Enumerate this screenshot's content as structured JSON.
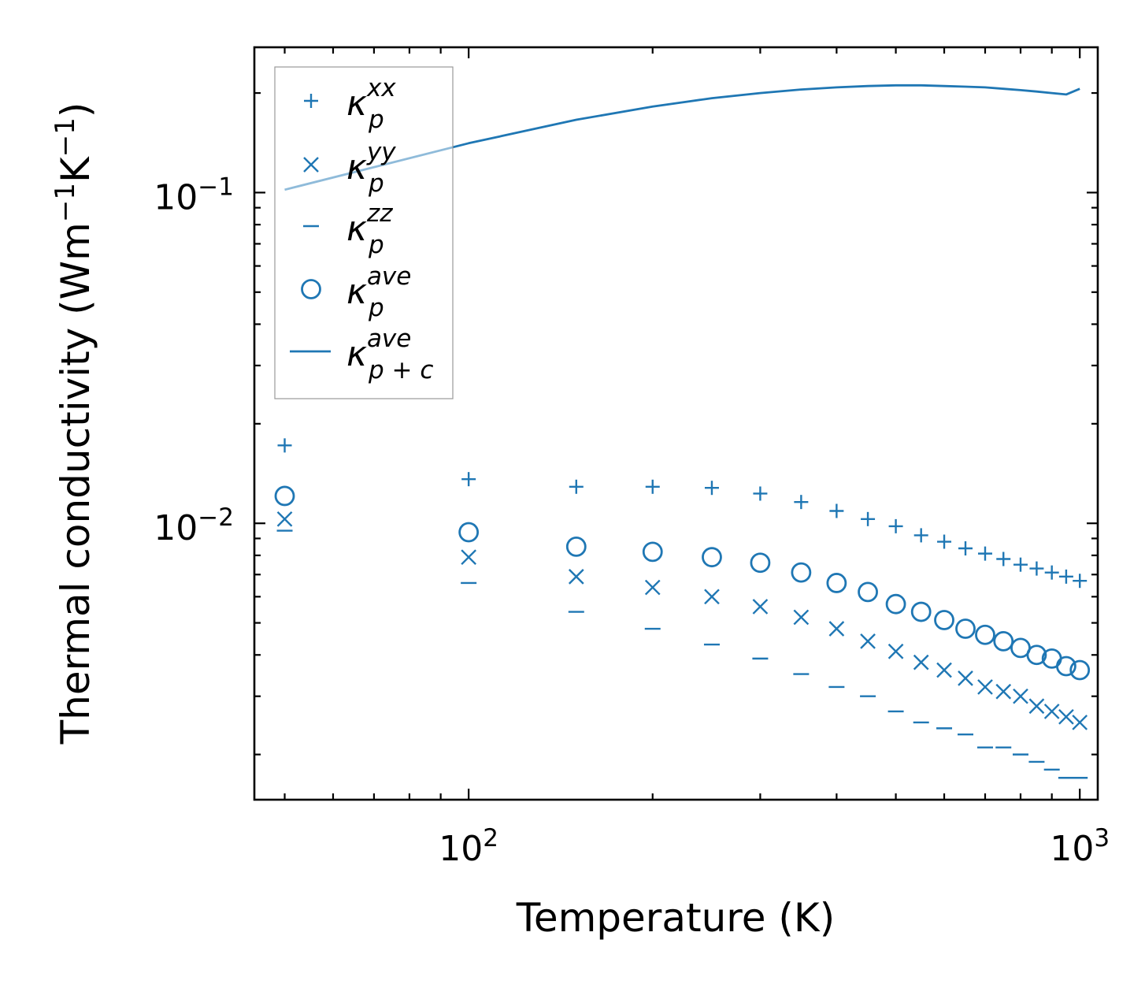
{
  "chart_data": {
    "type": "scatter",
    "title": "",
    "xlabel": "Temperature (K)",
    "ylabel": "Thermal conductivity (Wm",
    "ylabel_sup1": "−1",
    "ylabel_mid": "K",
    "ylabel_sup2": "−1",
    "ylabel_end": ")",
    "xscale": "log",
    "yscale": "log",
    "xlim": [
      44.6,
      1070
    ],
    "ylim": [
      0.00146,
      0.275
    ],
    "x_ticks": [
      {
        "base": "10",
        "exp": "2"
      },
      {
        "base": "10",
        "exp": "3"
      }
    ],
    "y_ticks": [
      {
        "base": "10",
        "exp": "−1"
      },
      {
        "base": "10",
        "exp": "−2"
      }
    ],
    "legend_position": "upper-left",
    "color": "#1f77b4",
    "x": [
      50,
      100,
      150,
      200,
      250,
      300,
      350,
      400,
      450,
      500,
      550,
      600,
      650,
      700,
      750,
      800,
      850,
      900,
      950,
      1000
    ],
    "series": [
      {
        "name": "κp xx",
        "label_main": "κ",
        "label_sub": "p",
        "label_sup": "xx",
        "marker": "plus",
        "values": [
          0.0172,
          0.0136,
          0.0129,
          0.0129,
          0.0128,
          0.0123,
          0.0116,
          0.0109,
          0.0103,
          0.0098,
          0.0092,
          0.0088,
          0.0084,
          0.0081,
          0.0078,
          0.0075,
          0.0073,
          0.0071,
          0.0069,
          0.0067
        ]
      },
      {
        "name": "κp yy",
        "label_main": "κ",
        "label_sub": "p",
        "label_sup": "yy",
        "marker": "x",
        "values": [
          0.0103,
          0.0079,
          0.0069,
          0.0064,
          0.006,
          0.0056,
          0.0052,
          0.0048,
          0.0044,
          0.0041,
          0.0038,
          0.0036,
          0.0034,
          0.0032,
          0.0031,
          0.003,
          0.0028,
          0.0027,
          0.0026,
          0.0025
        ]
      },
      {
        "name": "κp zz",
        "label_main": "κ",
        "label_sub": "p",
        "label_sup": "zz",
        "marker": "hline",
        "values": [
          0.0095,
          0.0066,
          0.0054,
          0.0048,
          0.0043,
          0.0039,
          0.0035,
          0.0032,
          0.003,
          0.0027,
          0.0025,
          0.0024,
          0.0023,
          0.0021,
          0.0021,
          0.002,
          0.0019,
          0.0018,
          0.0017,
          0.0017
        ]
      },
      {
        "name": "κp ave",
        "label_main": "κ",
        "label_sub": "p",
        "label_sup": "ave",
        "marker": "circle",
        "values": [
          0.0121,
          0.0094,
          0.0085,
          0.0082,
          0.0079,
          0.0076,
          0.0071,
          0.0066,
          0.0062,
          0.0057,
          0.0054,
          0.0051,
          0.0048,
          0.0046,
          0.0044,
          0.0042,
          0.004,
          0.0039,
          0.0037,
          0.0036
        ]
      },
      {
        "name": "κp+c ave",
        "label_main": "κ",
        "label_sub": "p + c",
        "label_sup": "ave",
        "marker": "line",
        "values": [
          0.102,
          0.141,
          0.166,
          0.182,
          0.193,
          0.2,
          0.205,
          0.208,
          0.21,
          0.211,
          0.211,
          0.21,
          0.209,
          0.208,
          0.206,
          0.204,
          0.202,
          0.2,
          0.198,
          0.206
        ]
      }
    ]
  }
}
